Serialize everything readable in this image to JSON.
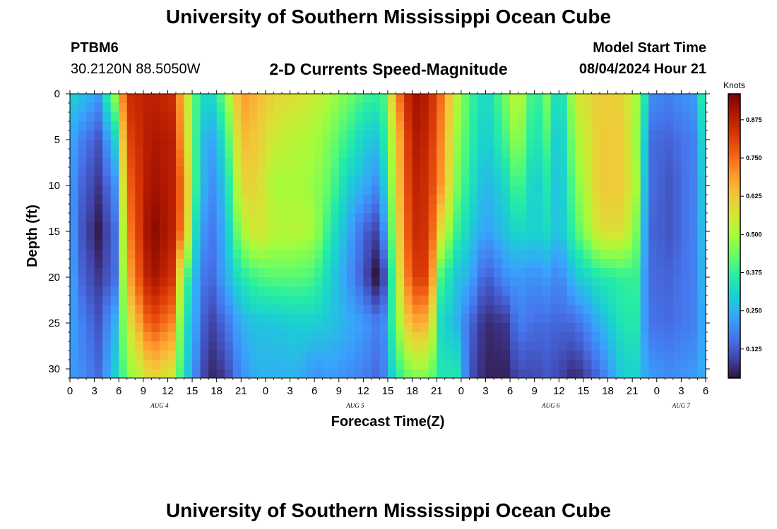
{
  "header": {
    "title": "University of Southern Mississippi Ocean Cube",
    "station": "PTBM6",
    "coords": "30.2120N  88.5050W",
    "subtitle": "2-D Currents Speed-Magnitude",
    "model_start_label": "Model Start Time",
    "model_start_value": "08/04/2024 Hour 21"
  },
  "footer": {
    "title": "University of Southern Mississippi Ocean Cube"
  },
  "chart_data": {
    "type": "heatmap",
    "title": "2-D Currents Speed-Magnitude",
    "xlabel": "Forecast Time(Z)",
    "ylabel": "Depth (ft)",
    "colorbar_label": "Knots",
    "x_range_hours": [
      0,
      78
    ],
    "x_tick_step_hours": 3,
    "x_ticks": [
      "0",
      "3",
      "6",
      "9",
      "12",
      "15",
      "18",
      "21",
      "0",
      "3",
      "6",
      "9",
      "12",
      "15",
      "18",
      "21",
      "0",
      "3",
      "6",
      "9",
      "12",
      "15",
      "18",
      "21",
      "0",
      "3",
      "6"
    ],
    "date_labels": [
      {
        "label": "AUG 4",
        "hour": 11
      },
      {
        "label": "AUG 5",
        "hour": 35
      },
      {
        "label": "AUG 6",
        "hour": 59
      },
      {
        "label": "AUG 7",
        "hour": 75
      }
    ],
    "y_range_ft": [
      0,
      31
    ],
    "y_ticks": [
      0,
      5,
      10,
      15,
      20,
      25,
      30
    ],
    "colorbar_range": [
      0.03,
      0.96
    ],
    "colorbar_ticks": [
      "0.125",
      "0.250",
      "0.375",
      "0.500",
      "0.625",
      "0.750",
      "0.875"
    ],
    "colorbar_tick_values": [
      0.125,
      0.25,
      0.375,
      0.5,
      0.625,
      0.75,
      0.875
    ],
    "colormap": [
      "#30123b",
      "#4145ab",
      "#4675ed",
      "#39a2fc",
      "#1bcfd4",
      "#24eca6",
      "#61fc6c",
      "#a4fc3b",
      "#d1e834",
      "#f3c63a",
      "#fe9b2d",
      "#f36315",
      "#d93806",
      "#b11901",
      "#7a0403"
    ],
    "profile_hours": [
      0,
      1.5,
      3.5,
      5.5,
      7,
      10,
      12.5,
      14,
      15.5,
      17,
      19,
      21,
      23,
      25,
      28,
      30,
      32,
      34,
      36,
      37.5,
      38.5,
      40,
      42,
      44,
      45.5,
      47.5,
      49,
      51,
      53.5,
      55,
      57,
      58.5,
      60,
      62,
      65,
      68,
      69.5,
      70.5,
      71.5,
      73.5,
      76.5,
      78
    ],
    "profile_depths_ft": [
      0,
      5,
      10,
      15,
      20,
      25,
      31
    ],
    "speed_knots": [
      [
        0.3,
        0.25,
        0.23,
        0.24,
        0.25,
        0.24,
        0.22
      ],
      [
        0.28,
        0.18,
        0.14,
        0.12,
        0.14,
        0.18,
        0.2
      ],
      [
        0.22,
        0.12,
        0.08,
        0.04,
        0.08,
        0.12,
        0.15
      ],
      [
        0.48,
        0.3,
        0.2,
        0.15,
        0.15,
        0.25,
        0.3
      ],
      [
        0.85,
        0.8,
        0.75,
        0.7,
        0.65,
        0.55,
        0.45
      ],
      [
        0.88,
        0.9,
        0.92,
        0.95,
        0.92,
        0.8,
        0.6
      ],
      [
        0.85,
        0.88,
        0.88,
        0.88,
        0.84,
        0.72,
        0.55
      ],
      [
        0.62,
        0.65,
        0.72,
        0.7,
        0.45,
        0.35,
        0.33
      ],
      [
        0.4,
        0.38,
        0.38,
        0.32,
        0.25,
        0.22,
        0.18
      ],
      [
        0.28,
        0.2,
        0.18,
        0.15,
        0.12,
        0.08,
        0.05
      ],
      [
        0.45,
        0.35,
        0.28,
        0.25,
        0.24,
        0.15,
        0.08
      ],
      [
        0.7,
        0.65,
        0.6,
        0.5,
        0.35,
        0.25,
        0.2
      ],
      [
        0.65,
        0.62,
        0.6,
        0.58,
        0.4,
        0.28,
        0.25
      ],
      [
        0.6,
        0.55,
        0.5,
        0.52,
        0.42,
        0.28,
        0.25
      ],
      [
        0.58,
        0.52,
        0.5,
        0.52,
        0.42,
        0.3,
        0.25
      ],
      [
        0.55,
        0.5,
        0.48,
        0.5,
        0.4,
        0.3,
        0.2
      ],
      [
        0.5,
        0.45,
        0.42,
        0.35,
        0.3,
        0.28,
        0.22
      ],
      [
        0.45,
        0.38,
        0.3,
        0.25,
        0.22,
        0.25,
        0.2
      ],
      [
        0.4,
        0.3,
        0.25,
        0.14,
        0.12,
        0.22,
        0.18
      ],
      [
        0.38,
        0.28,
        0.2,
        0.1,
        0.03,
        0.18,
        0.15
      ],
      [
        0.4,
        0.35,
        0.28,
        0.2,
        0.1,
        0.2,
        0.18
      ],
      [
        0.7,
        0.6,
        0.58,
        0.55,
        0.5,
        0.45,
        0.35
      ],
      [
        0.92,
        0.9,
        0.88,
        0.86,
        0.82,
        0.68,
        0.45
      ],
      [
        0.88,
        0.86,
        0.84,
        0.84,
        0.82,
        0.65,
        0.45
      ],
      [
        0.75,
        0.72,
        0.7,
        0.58,
        0.4,
        0.32,
        0.35
      ],
      [
        0.52,
        0.48,
        0.45,
        0.38,
        0.28,
        0.25,
        0.35
      ],
      [
        0.4,
        0.38,
        0.35,
        0.3,
        0.25,
        0.15,
        0.12
      ],
      [
        0.3,
        0.28,
        0.25,
        0.22,
        0.12,
        0.06,
        0.05
      ],
      [
        0.45,
        0.4,
        0.32,
        0.28,
        0.2,
        0.08,
        0.05
      ],
      [
        0.55,
        0.5,
        0.42,
        0.32,
        0.22,
        0.18,
        0.1
      ],
      [
        0.35,
        0.32,
        0.28,
        0.3,
        0.2,
        0.15,
        0.1
      ],
      [
        0.45,
        0.4,
        0.35,
        0.32,
        0.22,
        0.15,
        0.12
      ],
      [
        0.28,
        0.25,
        0.25,
        0.26,
        0.18,
        0.14,
        0.1
      ],
      [
        0.55,
        0.5,
        0.45,
        0.4,
        0.28,
        0.15,
        0.05
      ],
      [
        0.62,
        0.62,
        0.62,
        0.58,
        0.35,
        0.25,
        0.15
      ],
      [
        0.6,
        0.62,
        0.62,
        0.58,
        0.38,
        0.35,
        0.3
      ],
      [
        0.5,
        0.48,
        0.5,
        0.45,
        0.38,
        0.35,
        0.3
      ],
      [
        0.35,
        0.3,
        0.28,
        0.25,
        0.22,
        0.22,
        0.25
      ],
      [
        0.2,
        0.15,
        0.15,
        0.14,
        0.15,
        0.16,
        0.22
      ],
      [
        0.18,
        0.14,
        0.12,
        0.12,
        0.14,
        0.15,
        0.2
      ],
      [
        0.22,
        0.18,
        0.18,
        0.18,
        0.18,
        0.18,
        0.22
      ],
      [
        0.42,
        0.35,
        0.32,
        0.3,
        0.28,
        0.26,
        0.25
      ]
    ]
  }
}
